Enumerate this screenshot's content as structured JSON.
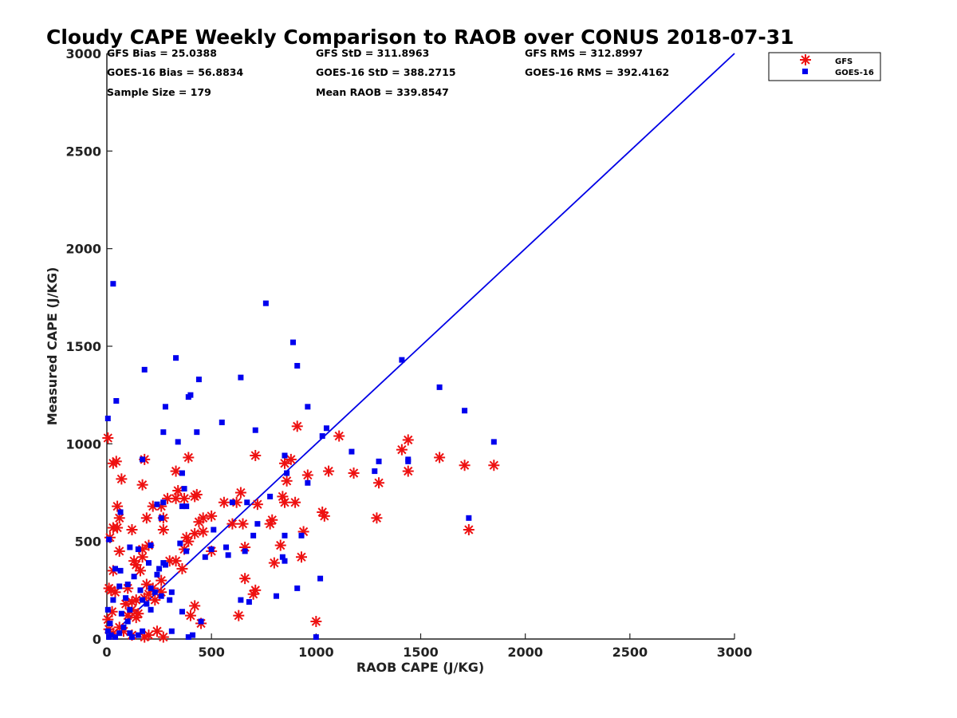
{
  "chart_data": {
    "type": "scatter",
    "title": "Cloudy CAPE Weekly Comparison to RAOB over CONUS 2018-07-31",
    "xlabel": "RAOB CAPE (J/KG)",
    "ylabel": "Measured CAPE (J/KG)",
    "xlim": [
      0,
      3000
    ],
    "ylim": [
      0,
      3000
    ],
    "xticks": [
      "0",
      "500",
      "1000",
      "1500",
      "2000",
      "2500",
      "3000"
    ],
    "yticks": [
      "0",
      "500",
      "1000",
      "1500",
      "2000",
      "2500",
      "3000"
    ],
    "grid": false,
    "legend_position": "top-right, outside axes",
    "reference_line": {
      "x": [
        0,
        3000
      ],
      "y": [
        0,
        3000
      ],
      "color": "#0000e6"
    },
    "stats": [
      "GFS Bias = 25.0388",
      "GFS StD = 311.8963",
      "GFS RMS = 312.8997",
      "GOES-16 Bias = 56.8834",
      "GOES-16 StD = 388.2715",
      "GOES-16 RMS = 392.4162",
      "Sample Size = 179",
      "Mean RAOB = 339.8547"
    ],
    "series": [
      {
        "name": "GFS",
        "marker": "asterisk",
        "color": "#ee1111",
        "points": [
          [
            5,
            1030
          ],
          [
            30,
            900
          ],
          [
            45,
            910
          ],
          [
            70,
            820
          ],
          [
            50,
            680
          ],
          [
            60,
            620
          ],
          [
            30,
            570
          ],
          [
            50,
            570
          ],
          [
            15,
            520
          ],
          [
            60,
            450
          ],
          [
            30,
            350
          ],
          [
            10,
            260
          ],
          [
            20,
            250
          ],
          [
            40,
            240
          ],
          [
            25,
            140
          ],
          [
            5,
            100
          ],
          [
            10,
            50
          ],
          [
            30,
            30
          ],
          [
            60,
            60
          ],
          [
            80,
            40
          ],
          [
            120,
            20
          ],
          [
            180,
            10
          ],
          [
            200,
            20
          ],
          [
            270,
            10
          ],
          [
            240,
            40
          ],
          [
            100,
            120
          ],
          [
            140,
            110
          ],
          [
            120,
            150
          ],
          [
            150,
            130
          ],
          [
            90,
            180
          ],
          [
            120,
            190
          ],
          [
            140,
            200
          ],
          [
            180,
            210
          ],
          [
            200,
            230
          ],
          [
            230,
            200
          ],
          [
            260,
            240
          ],
          [
            220,
            260
          ],
          [
            100,
            260
          ],
          [
            190,
            280
          ],
          [
            260,
            300
          ],
          [
            160,
            350
          ],
          [
            140,
            380
          ],
          [
            130,
            400
          ],
          [
            170,
            420
          ],
          [
            170,
            460
          ],
          [
            200,
            480
          ],
          [
            120,
            560
          ],
          [
            190,
            620
          ],
          [
            270,
            620
          ],
          [
            270,
            560
          ],
          [
            220,
            680
          ],
          [
            260,
            680
          ],
          [
            290,
            720
          ],
          [
            170,
            790
          ],
          [
            180,
            920
          ],
          [
            330,
            860
          ],
          [
            390,
            930
          ],
          [
            330,
            720
          ],
          [
            340,
            760
          ],
          [
            370,
            720
          ],
          [
            420,
            730
          ],
          [
            430,
            740
          ],
          [
            440,
            600
          ],
          [
            460,
            620
          ],
          [
            420,
            540
          ],
          [
            460,
            550
          ],
          [
            380,
            520
          ],
          [
            390,
            500
          ],
          [
            370,
            460
          ],
          [
            330,
            400
          ],
          [
            300,
            400
          ],
          [
            360,
            360
          ],
          [
            400,
            120
          ],
          [
            420,
            170
          ],
          [
            450,
            80
          ],
          [
            500,
            450
          ],
          [
            500,
            630
          ],
          [
            560,
            700
          ],
          [
            600,
            590
          ],
          [
            620,
            700
          ],
          [
            640,
            750
          ],
          [
            650,
            590
          ],
          [
            660,
            470
          ],
          [
            660,
            310
          ],
          [
            630,
            120
          ],
          [
            700,
            230
          ],
          [
            710,
            250
          ],
          [
            710,
            940
          ],
          [
            720,
            690
          ],
          [
            780,
            590
          ],
          [
            790,
            610
          ],
          [
            800,
            390
          ],
          [
            830,
            480
          ],
          [
            840,
            730
          ],
          [
            850,
            700
          ],
          [
            860,
            810
          ],
          [
            850,
            900
          ],
          [
            880,
            920
          ],
          [
            900,
            700
          ],
          [
            910,
            1090
          ],
          [
            930,
            420
          ],
          [
            940,
            550
          ],
          [
            960,
            840
          ],
          [
            1000,
            90
          ],
          [
            1030,
            650
          ],
          [
            1040,
            630
          ],
          [
            1060,
            860
          ],
          [
            1110,
            1040
          ],
          [
            1180,
            850
          ],
          [
            1290,
            620
          ],
          [
            1300,
            800
          ],
          [
            1410,
            970
          ],
          [
            1440,
            1020
          ],
          [
            1440,
            860
          ],
          [
            1590,
            930
          ],
          [
            1710,
            890
          ],
          [
            1730,
            560
          ],
          [
            1850,
            890
          ]
        ]
      },
      {
        "name": "GOES-16",
        "marker": "square",
        "color": "#0000ee",
        "points": [
          [
            30,
            1820
          ],
          [
            5,
            1130
          ],
          [
            45,
            1220
          ],
          [
            10,
            510
          ],
          [
            40,
            360
          ],
          [
            65,
            350
          ],
          [
            65,
            650
          ],
          [
            60,
            270
          ],
          [
            30,
            200
          ],
          [
            5,
            150
          ],
          [
            15,
            80
          ],
          [
            5,
            40
          ],
          [
            10,
            10
          ],
          [
            20,
            20
          ],
          [
            40,
            10
          ],
          [
            60,
            30
          ],
          [
            80,
            60
          ],
          [
            100,
            90
          ],
          [
            110,
            30
          ],
          [
            120,
            10
          ],
          [
            150,
            20
          ],
          [
            170,
            40
          ],
          [
            70,
            130
          ],
          [
            110,
            150
          ],
          [
            90,
            210
          ],
          [
            100,
            280
          ],
          [
            130,
            320
          ],
          [
            160,
            250
          ],
          [
            170,
            200
          ],
          [
            190,
            180
          ],
          [
            210,
            150
          ],
          [
            200,
            390
          ],
          [
            210,
            260
          ],
          [
            230,
            240
          ],
          [
            240,
            330
          ],
          [
            250,
            360
          ],
          [
            150,
            460
          ],
          [
            110,
            470
          ],
          [
            210,
            480
          ],
          [
            240,
            690
          ],
          [
            260,
            620
          ],
          [
            270,
            700
          ],
          [
            270,
            1060
          ],
          [
            280,
            1190
          ],
          [
            180,
            1380
          ],
          [
            170,
            920
          ],
          [
            270,
            390
          ],
          [
            280,
            380
          ],
          [
            260,
            220
          ],
          [
            300,
            200
          ],
          [
            310,
            240
          ],
          [
            310,
            40
          ],
          [
            330,
            1440
          ],
          [
            340,
            1010
          ],
          [
            350,
            490
          ],
          [
            360,
            680
          ],
          [
            370,
            770
          ],
          [
            360,
            850
          ],
          [
            380,
            680
          ],
          [
            390,
            1240
          ],
          [
            400,
            1250
          ],
          [
            380,
            450
          ],
          [
            360,
            140
          ],
          [
            390,
            10
          ],
          [
            410,
            20
          ],
          [
            440,
            1330
          ],
          [
            430,
            1060
          ],
          [
            450,
            90
          ],
          [
            470,
            420
          ],
          [
            500,
            460
          ],
          [
            510,
            560
          ],
          [
            550,
            1110
          ],
          [
            570,
            470
          ],
          [
            580,
            430
          ],
          [
            600,
            700
          ],
          [
            640,
            1340
          ],
          [
            640,
            200
          ],
          [
            660,
            450
          ],
          [
            670,
            700
          ],
          [
            680,
            190
          ],
          [
            700,
            530
          ],
          [
            710,
            1070
          ],
          [
            720,
            590
          ],
          [
            760,
            1720
          ],
          [
            780,
            730
          ],
          [
            810,
            220
          ],
          [
            840,
            420
          ],
          [
            850,
            400
          ],
          [
            850,
            940
          ],
          [
            850,
            530
          ],
          [
            860,
            850
          ],
          [
            890,
            1520
          ],
          [
            910,
            1400
          ],
          [
            910,
            260
          ],
          [
            930,
            530
          ],
          [
            960,
            800
          ],
          [
            960,
            1190
          ],
          [
            1000,
            10
          ],
          [
            1020,
            310
          ],
          [
            1030,
            1040
          ],
          [
            1050,
            1080
          ],
          [
            1170,
            960
          ],
          [
            1280,
            860
          ],
          [
            1300,
            910
          ],
          [
            1410,
            1430
          ],
          [
            1440,
            920
          ],
          [
            1440,
            910
          ],
          [
            1590,
            1290
          ],
          [
            1710,
            1170
          ],
          [
            1730,
            620
          ],
          [
            1850,
            1010
          ]
        ]
      }
    ]
  }
}
